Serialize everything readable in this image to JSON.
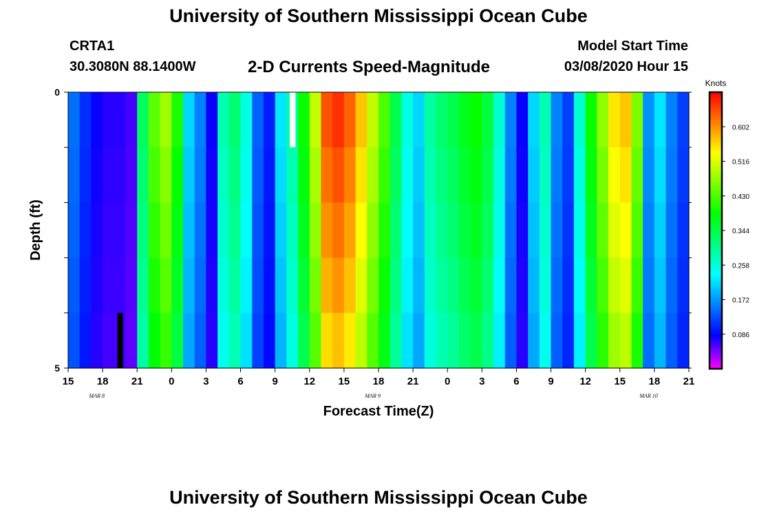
{
  "header": {
    "title": "University of Southern Mississippi Ocean Cube",
    "station": "CRTA1",
    "coords": "30.3080N 88.1400W",
    "chart_title": "2-D Currents Speed-Magnitude",
    "model_start_label": "Model Start Time",
    "model_start_value": "03/08/2020 Hour 15"
  },
  "footer": {
    "title": "University of Southern Mississippi Ocean Cube"
  },
  "chart_data": {
    "type": "heatmap",
    "title": "2-D Currents Speed-Magnitude",
    "xlabel": "Forecast Time(Z)",
    "ylabel": "Depth (ft)",
    "x_tick_labels": [
      "15",
      "18",
      "21",
      "0",
      "3",
      "6",
      "9",
      "12",
      "15",
      "18",
      "21",
      "0",
      "3",
      "6",
      "9",
      "12",
      "15",
      "18",
      "21"
    ],
    "date_labels": [
      "MAR 8",
      "MAR 9",
      "MAR 10"
    ],
    "y_tick_labels": [
      "0",
      "5"
    ],
    "ylim": [
      0,
      5
    ],
    "hours_start": 15,
    "hours_count": 54,
    "depth_rows": 5,
    "colorbar": {
      "label": "Knots",
      "ticks": [
        "0.602",
        "0.516",
        "0.430",
        "0.344",
        "0.258",
        "0.172",
        "0.086"
      ],
      "tick_values": [
        0.602,
        0.516,
        0.43,
        0.344,
        0.258,
        0.172,
        0.086
      ],
      "vmin": 0.0,
      "vmax": 0.688
    },
    "speed_profile_knots": [
      0.15,
      0.11,
      0.08,
      0.07,
      0.07,
      0.06,
      0.33,
      0.44,
      0.48,
      0.4,
      0.21,
      0.16,
      0.08,
      0.28,
      0.32,
      0.25,
      0.14,
      0.1,
      0.22,
      0.29,
      0.39,
      0.5,
      0.64,
      0.66,
      0.63,
      0.57,
      0.5,
      0.43,
      0.34,
      0.25,
      0.21,
      0.29,
      0.32,
      0.34,
      0.37,
      0.39,
      0.35,
      0.26,
      0.16,
      0.08,
      0.21,
      0.28,
      0.16,
      0.12,
      0.26,
      0.39,
      0.47,
      0.55,
      0.57,
      0.46,
      0.17,
      0.22,
      0.16,
      0.12
    ],
    "depth_factors": [
      1.0,
      0.97,
      0.94,
      0.91,
      0.87
    ],
    "missing_cells": [
      {
        "hour_index": 19,
        "row": 0,
        "color": "#ffffff"
      },
      {
        "hour_index": 4,
        "row": 4,
        "color": "#000000"
      }
    ]
  }
}
